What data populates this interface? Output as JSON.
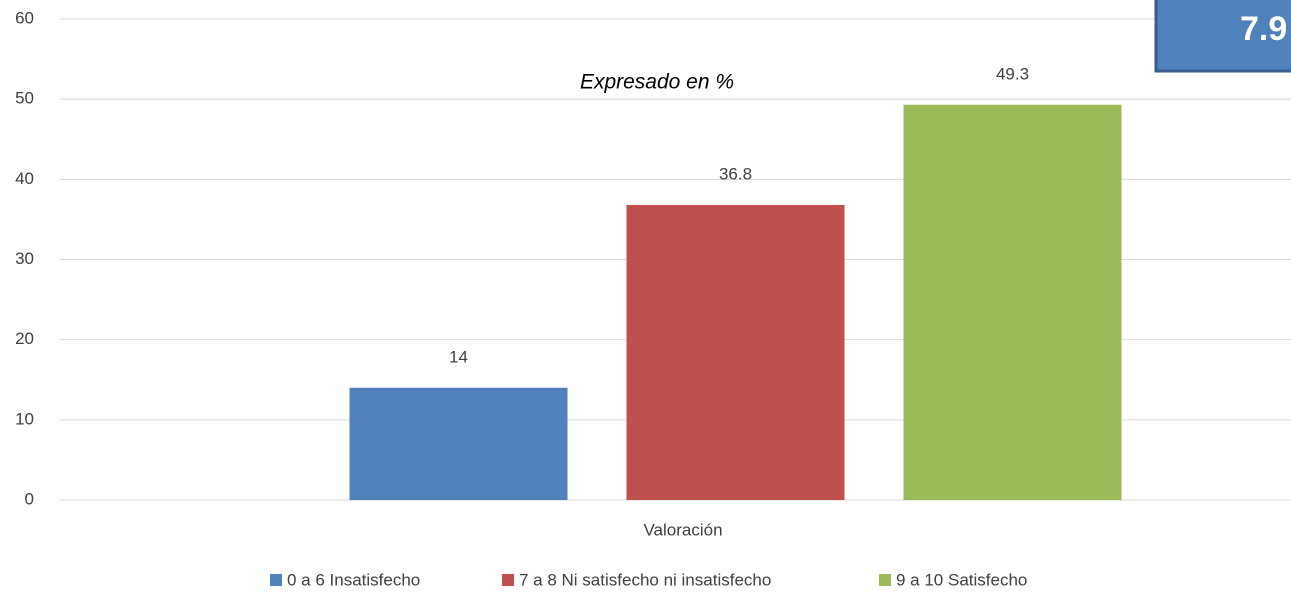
{
  "chart_data": {
    "type": "bar",
    "subtitle": "Expresado en %",
    "annotation": "7.9",
    "xlabel": "Valoración",
    "categories": [
      "Valoración"
    ],
    "series": [
      {
        "name": "0 a 6 Insatisfecho",
        "color": "#4f81bd",
        "values": [
          14
        ]
      },
      {
        "name": "7 a 8 Ni satisfecho ni insatisfecho",
        "color": "#c0504d",
        "values": [
          36.8
        ]
      },
      {
        "name": "9 a 10 Satisfecho",
        "color": "#9bbb59",
        "values": [
          49.3
        ]
      }
    ],
    "ylim": [
      0,
      60
    ],
    "yticks": [
      0,
      10,
      20,
      30,
      40,
      50,
      60
    ],
    "grid": true,
    "legend": "bottom"
  }
}
